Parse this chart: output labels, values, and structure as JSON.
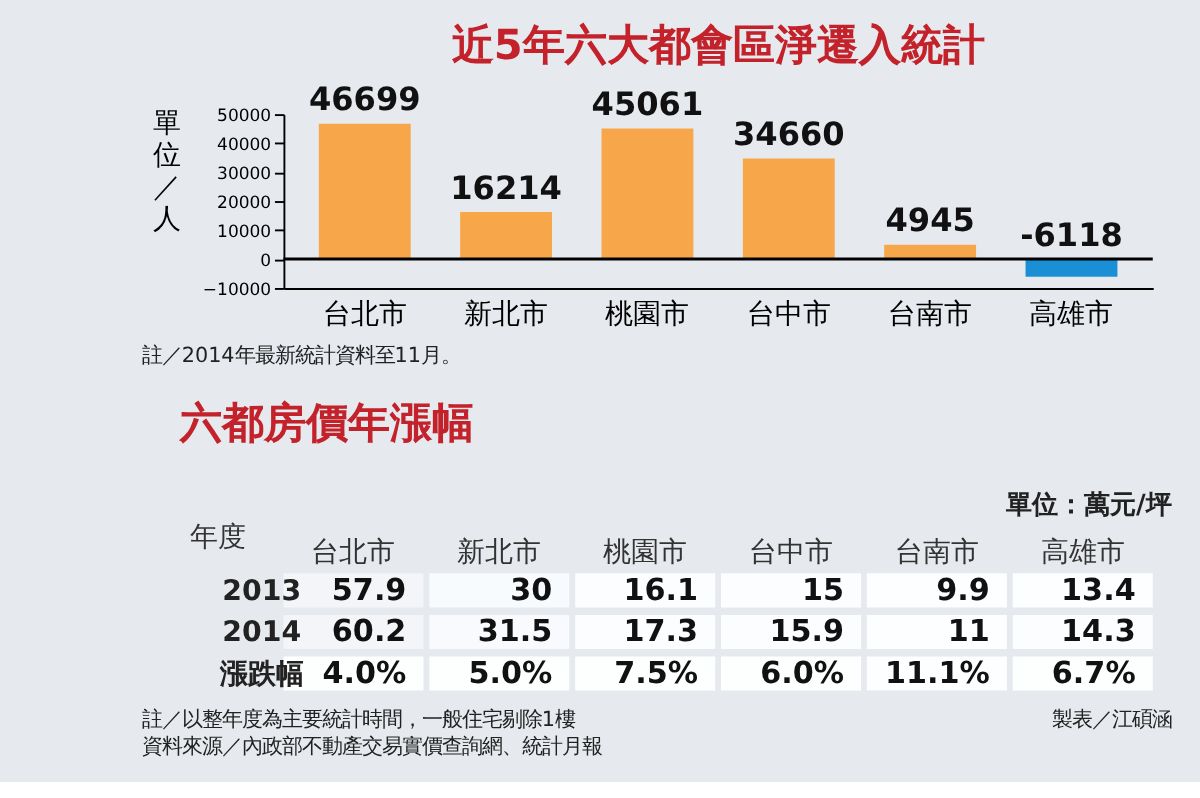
{
  "chart_data": [
    {
      "type": "bar",
      "title": "近5年六大都會區淨遷入統計",
      "ylabel": "單位／人",
      "categories": [
        "台北市",
        "新北市",
        "桃園市",
        "台中市",
        "台南市",
        "高雄市"
      ],
      "values": [
        46699,
        16214,
        45061,
        34660,
        4945,
        -6118
      ],
      "colors": [
        "#f7a74a",
        "#f7a74a",
        "#f7a74a",
        "#f7a74a",
        "#f7a74a",
        "#1b8fd6"
      ],
      "ylim": [
        -10000,
        50000
      ],
      "yticks": [
        -10000,
        0,
        10000,
        20000,
        30000,
        40000,
        50000
      ],
      "ref_lines": [
        {
          "axis": "y",
          "value": 0,
          "color": "#000000"
        }
      ],
      "data_labels": true,
      "grid": false,
      "annotations": [
        "註／2014年最新統計資料至11月。"
      ]
    },
    {
      "type": "heatmap",
      "title": "六都房價年漲幅",
      "subtitle": "單位：萬元/坪",
      "ylabel": "年度",
      "categories": [
        "台北市",
        "新北市",
        "桃園市",
        "台中市",
        "台南市",
        "高雄市"
      ],
      "y_categories": [
        "2013",
        "2014",
        "漲跌幅"
      ],
      "cells": [
        [
          57.9,
          30,
          16.1,
          15,
          9.9,
          13.4
        ],
        [
          60.2,
          31.5,
          17.3,
          15.9,
          11,
          14.3
        ],
        [
          4.0,
          5.0,
          7.5,
          6.0,
          11.1,
          6.7
        ]
      ],
      "cell_labels": [
        [
          "57.9",
          "30",
          "16.1",
          "15",
          "9.9",
          "13.4"
        ],
        [
          "60.2",
          "31.5",
          "17.3",
          "15.9",
          "11",
          "14.3"
        ],
        [
          "4.0%",
          "5.0%",
          "7.5%",
          "6.0%",
          "11.1%",
          "6.7%"
        ]
      ],
      "annotations": [
        "註／以整年度為主要統計時間，一般住宅剔除1樓",
        "製表／江碩涵",
        "資料來源／內政部不動產交易實價查詢網、統計月報"
      ]
    }
  ]
}
